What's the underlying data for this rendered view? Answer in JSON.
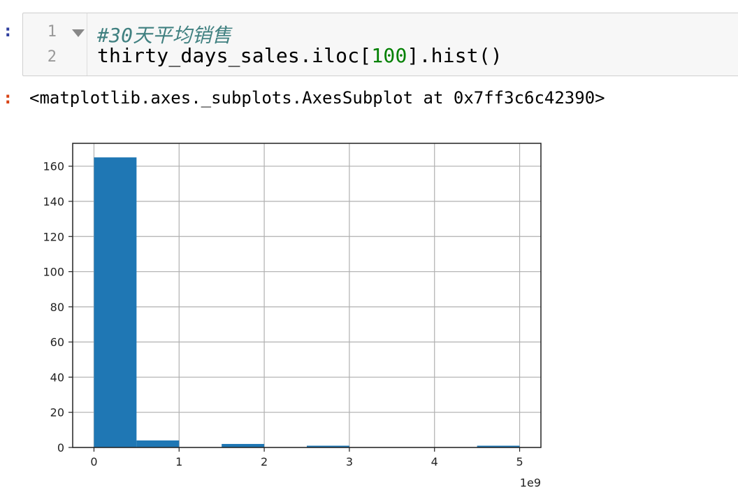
{
  "cell": {
    "in_prompt": ":",
    "out_prompt": ":",
    "line_numbers": [
      "1",
      "2"
    ],
    "comment_line": "#30天平均销售",
    "code_prefix": "thirty_days_sales.iloc[",
    "code_number": "100",
    "code_suffix": "].hist()",
    "output_text": "<matplotlib.axes._subplots.AxesSubplot at 0x7ff3c6c42390>"
  },
  "chart_data": {
    "type": "bar",
    "subtype": "histogram",
    "bins": [
      {
        "start": 0.0,
        "end": 0.5,
        "count": 165
      },
      {
        "start": 0.5,
        "end": 1.0,
        "count": 4
      },
      {
        "start": 1.0,
        "end": 1.5,
        "count": 0
      },
      {
        "start": 1.5,
        "end": 2.0,
        "count": 2
      },
      {
        "start": 2.0,
        "end": 2.5,
        "count": 0
      },
      {
        "start": 2.5,
        "end": 3.0,
        "count": 1
      },
      {
        "start": 3.0,
        "end": 3.5,
        "count": 0
      },
      {
        "start": 3.5,
        "end": 4.0,
        "count": 0
      },
      {
        "start": 4.0,
        "end": 4.5,
        "count": 0
      },
      {
        "start": 4.5,
        "end": 5.0,
        "count": 1
      }
    ],
    "xticks": [
      "0",
      "1",
      "2",
      "3",
      "4",
      "5"
    ],
    "yticks": [
      "0",
      "20",
      "40",
      "60",
      "80",
      "100",
      "120",
      "140",
      "160"
    ],
    "x_offset_label": "1e9",
    "xlim": [
      -0.25,
      5.25
    ],
    "ylim": [
      0,
      173
    ],
    "grid": true,
    "bar_color": "#1f77b4",
    "title": "",
    "xlabel": "",
    "ylabel": ""
  }
}
